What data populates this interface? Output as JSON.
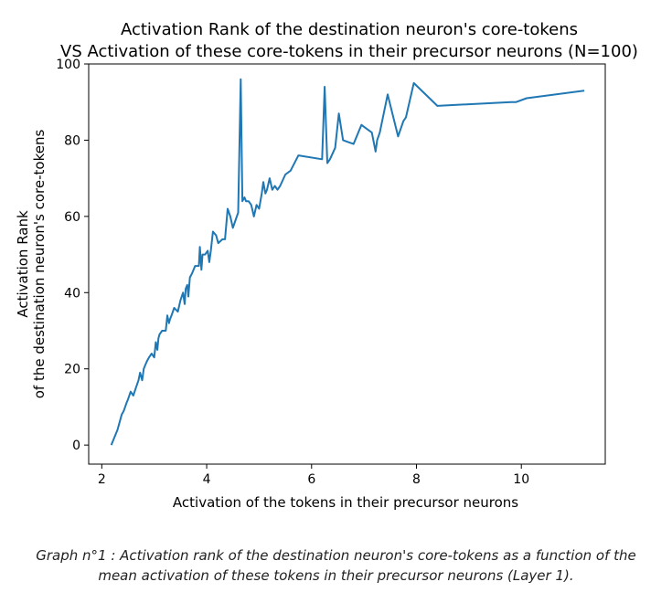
{
  "chart_data": {
    "type": "line",
    "title_lines": [
      "Activation Rank of the destination neuron's core-tokens",
      "VS Activation of these core-tokens in their precursor neurons (N=100)"
    ],
    "xlabel": "Activation of the tokens in their precursor neurons",
    "ylabel_lines": [
      "Activation Rank",
      "of the destination neuron's core-tokens"
    ],
    "xlim": [
      1.75,
      11.6
    ],
    "ylim": [
      -5,
      100
    ],
    "xticks": [
      2,
      4,
      6,
      8,
      10
    ],
    "yticks": [
      0,
      20,
      40,
      60,
      80,
      100
    ],
    "line_color": "#1f77b4",
    "grid": false,
    "series": [
      {
        "name": "rank",
        "x": [
          2.18,
          2.3,
          2.38,
          2.42,
          2.47,
          2.5,
          2.55,
          2.6,
          2.65,
          2.7,
          2.73,
          2.77,
          2.8,
          2.83,
          2.86,
          2.9,
          2.95,
          3.0,
          3.03,
          3.06,
          3.08,
          3.1,
          3.15,
          3.22,
          3.25,
          3.28,
          3.3,
          3.33,
          3.38,
          3.45,
          3.5,
          3.55,
          3.58,
          3.6,
          3.63,
          3.65,
          3.68,
          3.72,
          3.78,
          3.85,
          3.87,
          3.9,
          3.92,
          3.97,
          4.02,
          4.05,
          4.08,
          4.12,
          4.18,
          4.22,
          4.3,
          4.35,
          4.4,
          4.45,
          4.5,
          4.55,
          4.6,
          4.65,
          4.68,
          4.72,
          4.75,
          4.8,
          4.85,
          4.9,
          4.95,
          5.0,
          5.05,
          5.08,
          5.12,
          5.15,
          5.2,
          5.25,
          5.3,
          5.35,
          5.4,
          5.5,
          5.6,
          5.75,
          6.2,
          6.25,
          6.3,
          6.35,
          6.45,
          6.52,
          6.6,
          6.8,
          6.95,
          7.05,
          7.15,
          7.22,
          7.25,
          7.3,
          7.45,
          7.65,
          7.75,
          7.8,
          7.95,
          8.4,
          9.8,
          9.9,
          10.1,
          11.2
        ],
        "y": [
          0,
          4,
          8,
          9,
          11,
          12,
          14,
          13,
          15,
          17,
          19,
          17,
          20,
          21,
          22,
          23,
          24,
          23,
          27,
          25,
          28,
          29,
          30,
          30,
          34,
          32,
          33,
          34,
          36,
          35,
          38,
          40,
          37,
          41,
          42,
          39,
          44,
          45,
          47,
          47,
          52,
          46,
          50,
          50,
          51,
          48,
          51,
          56,
          55,
          53,
          54,
          54,
          62,
          60,
          57,
          59,
          61,
          96,
          64,
          65,
          64,
          64,
          63,
          60,
          63,
          62,
          66,
          69,
          66,
          67,
          70,
          67,
          68,
          67,
          68,
          71,
          72,
          76,
          75,
          94,
          74,
          75,
          78,
          87,
          80,
          79,
          84,
          83,
          82,
          77,
          80,
          82,
          92,
          81,
          85,
          86,
          95,
          89,
          90,
          90,
          91,
          93
        ]
      }
    ]
  },
  "caption_lines": [
    "Graph n°1 : Activation rank of the destination neuron's core-tokens as a function of the",
    "mean activation of these tokens in their precursor neurons (Layer 1)."
  ]
}
